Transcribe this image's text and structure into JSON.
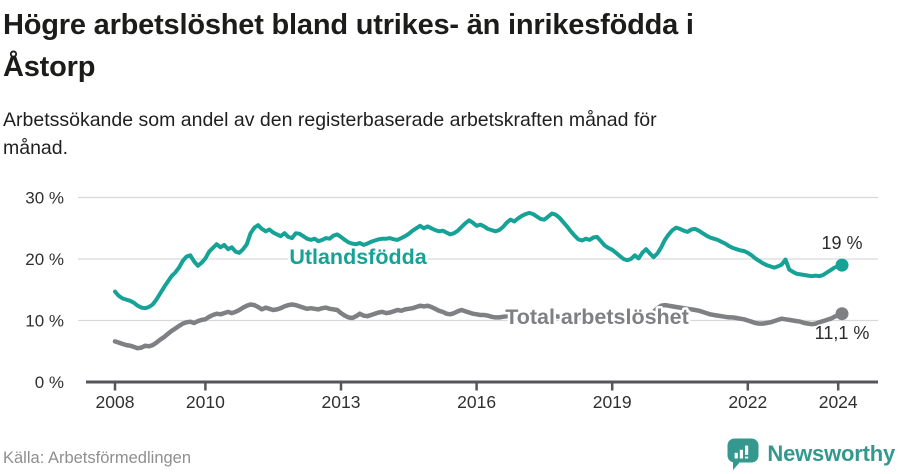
{
  "title": {
    "lines": [
      "Högre arbetslöshet bland utrikes- än inrikesfödda i",
      "Åstorp"
    ]
  },
  "subtitle": {
    "lines": [
      "Arbetssökande som andel av den registerbaserade arbetskraften månad för",
      "månad."
    ]
  },
  "source_text": "Källa: Arbetsförmedlingen",
  "logo": {
    "text": "Newsworthy",
    "color": "#35988f"
  },
  "colors": {
    "accent_teal": "#16a296",
    "line_gray": "#7f8083",
    "axis": "#55565a",
    "gridline": "#d9d9d9",
    "tick_text": "#303030",
    "value_text": "#2b2b2b",
    "source_text": "#8f8f8f"
  },
  "chart_data": {
    "type": "line",
    "unit": "%",
    "interval": "monthly",
    "x_start": "2008-01",
    "x_end": "2024-02",
    "ylim": [
      0,
      30
    ],
    "grid": "horizontal",
    "y_ticks": [
      {
        "value": 0,
        "label": "0 %"
      },
      {
        "value": 10,
        "label": "10 %"
      },
      {
        "value": 20,
        "label": "20 %"
      },
      {
        "value": 30,
        "label": "30 %"
      }
    ],
    "x_ticks": [
      {
        "year": 2008,
        "label": "2008"
      },
      {
        "year": 2010,
        "label": "2010"
      },
      {
        "year": 2013,
        "label": "2013"
      },
      {
        "year": 2016,
        "label": "2016"
      },
      {
        "year": 2019,
        "label": "2019"
      },
      {
        "year": 2022,
        "label": "2022"
      },
      {
        "year": 2024,
        "label": "2024"
      }
    ],
    "series": [
      {
        "name": "Utlandsfödda",
        "color": "#16a296",
        "end_label": "19 %",
        "end_value": 19.0,
        "values": [
          14.7,
          14.0,
          13.6,
          13.4,
          13.2,
          12.9,
          12.4,
          12.1,
          12.0,
          12.2,
          12.6,
          13.4,
          14.4,
          15.4,
          16.3,
          17.2,
          17.8,
          18.6,
          19.7,
          20.4,
          20.6,
          19.6,
          18.9,
          19.4,
          20.1,
          21.2,
          21.8,
          22.4,
          21.9,
          22.3,
          21.6,
          21.9,
          21.2,
          21.0,
          21.6,
          22.4,
          24.2,
          25.1,
          25.5,
          24.9,
          24.5,
          24.8,
          24.3,
          24.0,
          23.7,
          24.2,
          23.6,
          23.4,
          24.2,
          24.1,
          23.7,
          23.3,
          23.1,
          23.3,
          22.9,
          23.1,
          23.4,
          23.3,
          23.8,
          24.0,
          23.6,
          23.1,
          22.7,
          22.5,
          22.4,
          22.6,
          22.3,
          22.5,
          22.8,
          23.0,
          23.2,
          23.3,
          23.3,
          23.4,
          23.2,
          23.1,
          23.4,
          23.7,
          24.1,
          24.6,
          25.0,
          25.4,
          25.0,
          25.3,
          25.0,
          24.7,
          24.5,
          24.6,
          24.3,
          24.0,
          24.2,
          24.6,
          25.2,
          25.8,
          26.3,
          25.9,
          25.4,
          25.6,
          25.3,
          24.9,
          24.7,
          24.5,
          24.7,
          25.2,
          25.9,
          26.4,
          26.1,
          26.6,
          27.0,
          27.3,
          27.5,
          27.3,
          26.9,
          26.5,
          26.4,
          26.9,
          27.4,
          27.2,
          26.7,
          26.0,
          25.3,
          24.5,
          23.8,
          23.2,
          23.0,
          23.3,
          23.1,
          23.5,
          23.6,
          22.9,
          22.2,
          21.8,
          21.5,
          21.0,
          20.5,
          20.0,
          19.8,
          20.0,
          20.6,
          20.1,
          21.0,
          21.6,
          20.9,
          20.3,
          20.9,
          21.9,
          23.1,
          24.0,
          24.7,
          25.1,
          24.9,
          24.6,
          24.4,
          24.8,
          24.9,
          24.6,
          24.2,
          23.8,
          23.5,
          23.3,
          23.1,
          22.8,
          22.5,
          22.1,
          21.8,
          21.6,
          21.4,
          21.3,
          21.0,
          20.6,
          20.1,
          19.7,
          19.3,
          19.0,
          18.8,
          18.6,
          18.8,
          19.1,
          19.9,
          18.3,
          17.9,
          17.6,
          17.5,
          17.4,
          17.3,
          17.2,
          17.3,
          17.2,
          17.4,
          17.8,
          18.2,
          18.6,
          18.8,
          19.0
        ]
      },
      {
        "name": "Total arbetslöshet",
        "color": "#7f8083",
        "end_label": "11,1 %",
        "end_value": 11.1,
        "values": [
          6.6,
          6.4,
          6.2,
          6.0,
          5.9,
          5.7,
          5.5,
          5.6,
          5.9,
          5.8,
          6.0,
          6.4,
          6.9,
          7.3,
          7.8,
          8.3,
          8.7,
          9.1,
          9.5,
          9.7,
          9.8,
          9.6,
          9.9,
          10.1,
          10.2,
          10.6,
          10.9,
          11.1,
          11.0,
          11.2,
          11.4,
          11.2,
          11.4,
          11.7,
          12.1,
          12.4,
          12.6,
          12.5,
          12.2,
          11.8,
          12.1,
          11.9,
          11.7,
          11.8,
          12.0,
          12.3,
          12.5,
          12.6,
          12.5,
          12.3,
          12.1,
          11.9,
          12.0,
          11.9,
          11.8,
          12.0,
          12.1,
          11.9,
          11.8,
          11.7,
          11.2,
          10.8,
          10.5,
          10.4,
          10.7,
          11.1,
          10.8,
          10.7,
          10.9,
          11.1,
          11.3,
          11.4,
          11.2,
          11.3,
          11.5,
          11.7,
          11.6,
          11.8,
          11.9,
          12.0,
          12.2,
          12.4,
          12.3,
          12.4,
          12.2,
          11.9,
          11.6,
          11.4,
          11.1,
          11.0,
          11.2,
          11.5,
          11.7,
          11.5,
          11.3,
          11.1,
          11.0,
          10.9,
          10.9,
          10.8,
          10.6,
          10.5,
          10.5,
          10.6,
          10.7,
          10.6,
          10.5,
          10.6,
          10.7,
          10.8,
          10.7,
          10.8,
          11.0,
          10.9,
          10.8,
          10.9,
          10.8,
          10.7,
          10.6,
          10.7,
          10.8,
          10.7,
          10.5,
          10.4,
          10.3,
          10.2,
          10.3,
          10.4,
          10.3,
          10.2,
          10.3,
          10.3,
          10.3,
          10.2,
          10.1,
          10.0,
          10.1,
          10.3,
          10.5,
          10.4,
          10.6,
          10.8,
          11.0,
          11.4,
          12.0,
          12.4,
          12.5,
          12.4,
          12.3,
          12.2,
          12.1,
          12.0,
          11.9,
          11.8,
          11.7,
          11.6,
          11.4,
          11.2,
          11.0,
          10.9,
          10.8,
          10.7,
          10.6,
          10.5,
          10.5,
          10.4,
          10.3,
          10.2,
          10.0,
          9.8,
          9.6,
          9.5,
          9.5,
          9.6,
          9.7,
          9.9,
          10.1,
          10.3,
          10.2,
          10.1,
          10.0,
          9.9,
          9.8,
          9.6,
          9.5,
          9.4,
          9.5,
          9.7,
          9.9,
          10.1,
          10.3,
          10.6,
          10.9,
          11.1
        ]
      }
    ]
  }
}
